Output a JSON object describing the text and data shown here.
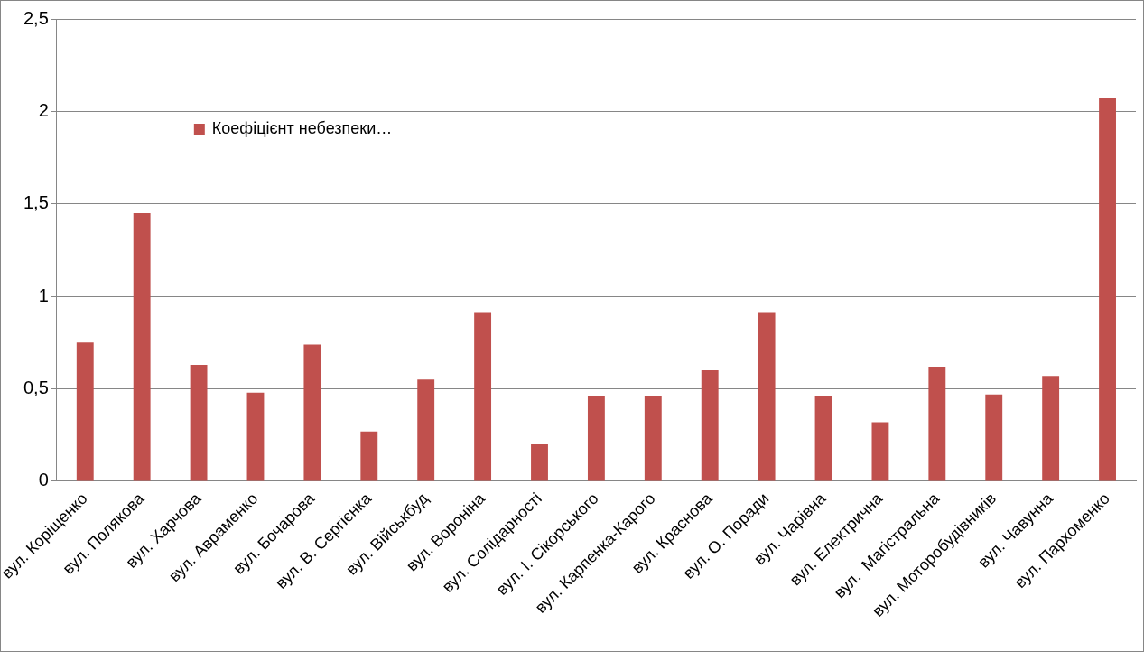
{
  "chart_data": {
    "type": "bar",
    "categories": [
      "вул. Коріщенко",
      "вул. Полякова",
      "вул. Харчова",
      "вул. Авраменко",
      "вул. Бочарова",
      "вул. В. Сергієнка",
      "вул. Військбуд",
      "вул. Вороніна",
      "вул. Солідарності",
      "вул. І. Сікорського",
      "вул. Карпенка-Карого",
      "вул. Краснова",
      "вул. О. Поради",
      "вул. Чарівна",
      "вул. Електрична",
      "вул.  Магістральна",
      "вул. Моторобудівників",
      "вул. Чавунна",
      "вул. Пархоменко"
    ],
    "series": [
      {
        "name": "Коефіцієнт небезпеки…",
        "color": "#c0504d",
        "values": [
          0.75,
          1.45,
          0.63,
          0.48,
          0.74,
          0.27,
          0.55,
          0.91,
          0.2,
          0.46,
          0.46,
          0.6,
          0.91,
          0.46,
          0.32,
          0.62,
          0.47,
          0.57,
          2.07
        ]
      }
    ],
    "ylim": [
      0,
      2.5
    ],
    "yticks": [
      0,
      {
        "value": 0.5,
        "label": "0,5"
      },
      1,
      {
        "value": 1.5,
        "label": "1,5"
      },
      2,
      {
        "value": 2.5,
        "label": "2,5"
      }
    ],
    "grid": "y",
    "legend": "top left"
  }
}
